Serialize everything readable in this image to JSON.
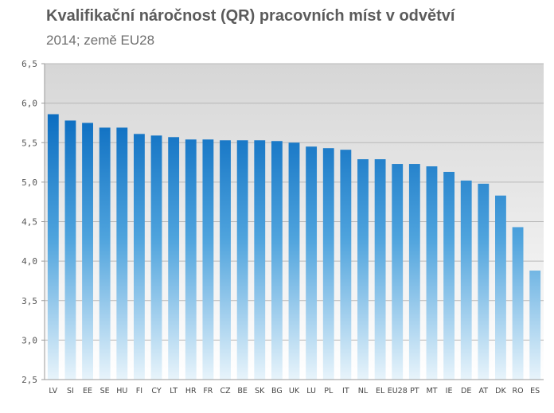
{
  "chart_data": {
    "type": "bar",
    "title": "Kvalifikační náročnost (QR)  pracovních míst v odvětví",
    "subtitle": "2014; země EU28",
    "xlabel": "",
    "ylabel": "",
    "ylim": [
      2.5,
      6.5
    ],
    "yticks": [
      "2,5",
      "3,0",
      "3,5",
      "4,0",
      "4,5",
      "5,0",
      "5,5",
      "6,0",
      "6,5"
    ],
    "ytick_values": [
      2.5,
      3.0,
      3.5,
      4.0,
      4.5,
      5.0,
      5.5,
      6.0,
      6.5
    ],
    "grid": true,
    "legend": "none",
    "categories": [
      "LV",
      "SI",
      "EE",
      "SE",
      "HU",
      "FI",
      "CY",
      "LT",
      "HR",
      "FR",
      "CZ",
      "BE",
      "SK",
      "BG",
      "UK",
      "LU",
      "PL",
      "IT",
      "NL",
      "EL",
      "EU28",
      "PT",
      "MT",
      "IE",
      "DE",
      "AT",
      "DK",
      "RO",
      "ES"
    ],
    "values": [
      5.86,
      5.78,
      5.75,
      5.69,
      5.69,
      5.61,
      5.59,
      5.57,
      5.54,
      5.54,
      5.53,
      5.53,
      5.53,
      5.52,
      5.5,
      5.45,
      5.43,
      5.41,
      5.29,
      5.29,
      5.23,
      5.23,
      5.2,
      5.13,
      5.02,
      4.98,
      4.83,
      4.43,
      3.88
    ],
    "colors": {
      "bar_top": "#0a6cc0",
      "bar_mid": "#4ea3dd",
      "bar_bottom": "#e8f4fb",
      "plot_bg_top": "#d6d6d6",
      "plot_bg_bottom": "#ffffff",
      "grid": "#b8b8b8",
      "axis": "#9a9a9a"
    }
  }
}
